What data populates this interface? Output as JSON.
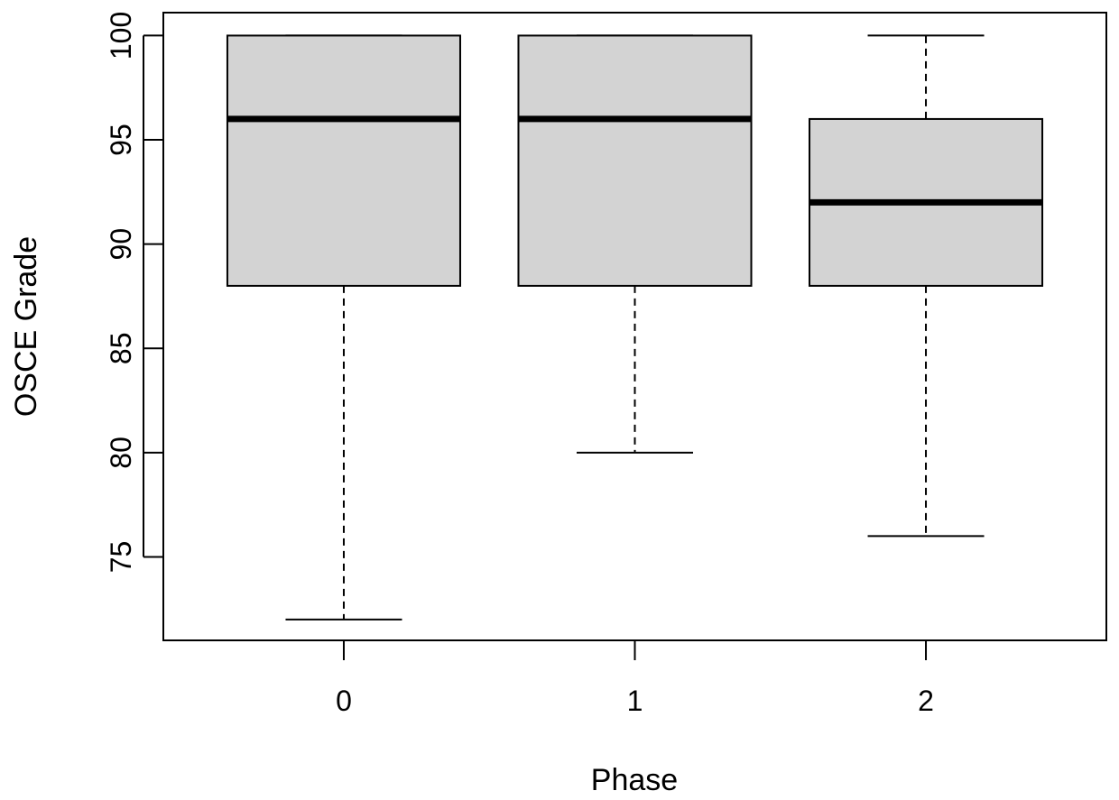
{
  "chart_data": {
    "type": "boxplot",
    "title": "",
    "xlabel": "Phase",
    "ylabel": "OSCE Grade",
    "categories": [
      "0",
      "1",
      "2"
    ],
    "boxes": [
      {
        "category": "0",
        "whisker_low": 72,
        "q1": 88,
        "median": 96,
        "q3": 100,
        "whisker_high": 100
      },
      {
        "category": "1",
        "whisker_low": 80,
        "q1": 88,
        "median": 96,
        "q3": 100,
        "whisker_high": 100
      },
      {
        "category": "2",
        "whisker_low": 76,
        "q1": 88,
        "median": 92,
        "q3": 96,
        "whisker_high": 100
      }
    ],
    "yticks": [
      75,
      80,
      85,
      90,
      95,
      100
    ],
    "ytick_labels": [
      "75",
      "80",
      "85",
      "90",
      "95",
      "100"
    ],
    "ylim": [
      71,
      101.1
    ],
    "xlim": [
      0.38,
      3.62
    ],
    "box_fill": "#d3d3d3",
    "line_color": "#000000",
    "grid": false,
    "legend": "none"
  }
}
